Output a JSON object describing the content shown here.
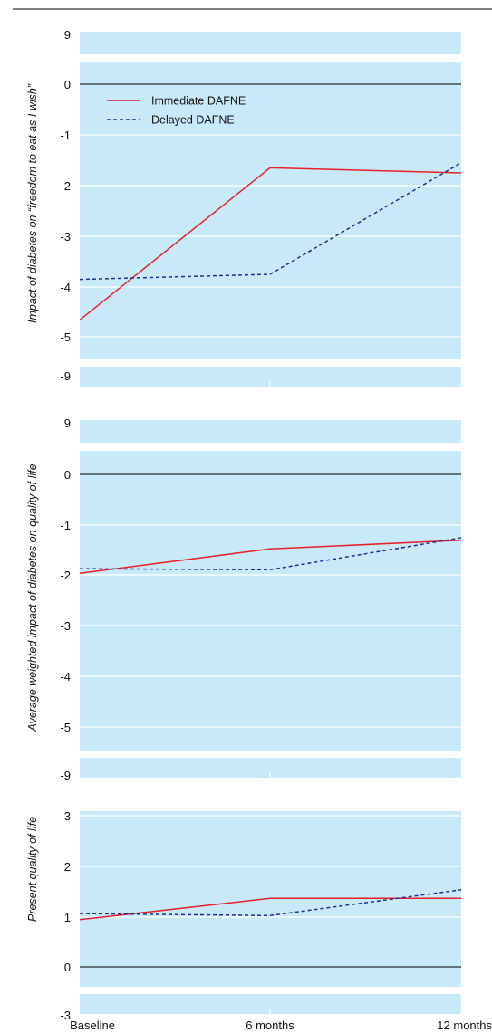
{
  "chart_data": [
    {
      "type": "line",
      "ylabel": "Impact of diabetes on “freedom to eat as I wish”",
      "x": [
        "Baseline",
        "6 months",
        "12 months"
      ],
      "y_ticks": [
        "9",
        "0",
        "-1",
        "-2",
        "-3",
        "-4",
        "-5",
        "-9"
      ],
      "ylim": [
        -5.4,
        0.4
      ],
      "axis_break": true,
      "legend": {
        "position": "top-left"
      },
      "series": [
        {
          "name": "Immediate DAFNE",
          "color": "#e8202a",
          "style": "solid",
          "values": [
            -4.65,
            -1.65,
            -1.75
          ]
        },
        {
          "name": "Delayed DAFNE",
          "color": "#1f2f8f",
          "style": "dashed",
          "values": [
            -3.85,
            -3.75,
            -1.55
          ]
        }
      ]
    },
    {
      "type": "line",
      "ylabel": "Average weighted impact of diabetes on quality of life",
      "x": [
        "Baseline",
        "6 months",
        "12 months"
      ],
      "y_ticks": [
        "9",
        "0",
        "-1",
        "-2",
        "-3",
        "-4",
        "-5",
        "-9"
      ],
      "ylim": [
        -5.4,
        0.4
      ],
      "axis_break": true,
      "series": [
        {
          "name": "Immediate DAFNE",
          "color": "#e8202a",
          "style": "solid",
          "values": [
            -1.95,
            -1.47,
            -1.3
          ]
        },
        {
          "name": "Delayed DAFNE",
          "color": "#1f2f8f",
          "style": "dashed",
          "values": [
            -1.86,
            -1.88,
            -1.25
          ]
        }
      ]
    },
    {
      "type": "line",
      "ylabel": "Present quality of life",
      "x": [
        "Baseline",
        "6 months",
        "12 months"
      ],
      "y_ticks": [
        "3",
        "2",
        "1",
        "0",
        "-3"
      ],
      "ylim": [
        -0.4,
        2.3
      ],
      "axis_break": true,
      "series": [
        {
          "name": "Immediate DAFNE",
          "color": "#e8202a",
          "style": "solid",
          "values": [
            0.95,
            1.37,
            1.37
          ]
        },
        {
          "name": "Delayed DAFNE",
          "color": "#1f2f8f",
          "style": "dashed",
          "values": [
            1.07,
            1.03,
            1.54
          ]
        }
      ]
    }
  ],
  "colors": {
    "panel_bg": "#c8eaf8",
    "grid": "#ffffff",
    "zero_line": "#000000"
  }
}
